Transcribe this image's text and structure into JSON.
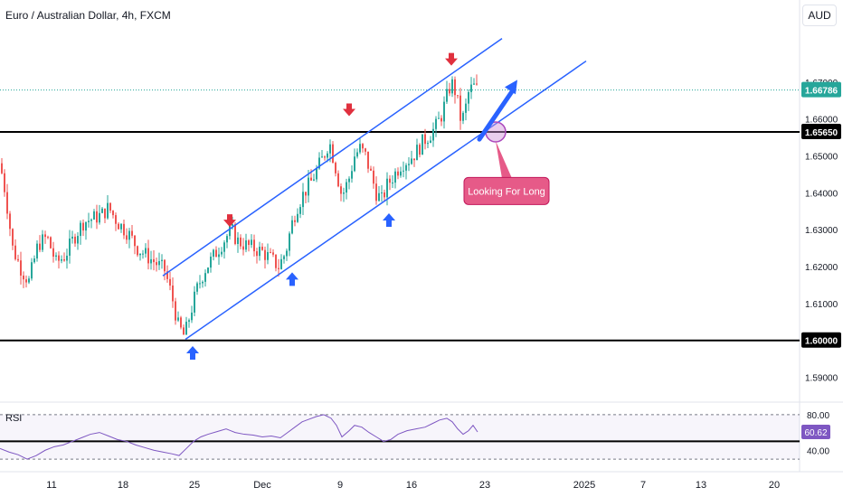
{
  "header": {
    "symbol": "Euro / Australian Dollar, 4h, FXCM",
    "currency": "AUD"
  },
  "colors": {
    "up": "#26a69a",
    "down": "#ef5350",
    "channel": "#2962ff",
    "red_arrow": "#e0303e",
    "blue_arrow": "#2962ff",
    "annotation_bg": "#e65a88",
    "rsi_line": "#7e57c2",
    "price_tag": "#26a69a"
  },
  "chart_data": [
    {
      "type": "candlestick",
      "ylim": [
        1.585,
        1.68
      ],
      "y_ticks": [
        "1.59000",
        "1.60000",
        "1.61000",
        "1.62000",
        "1.63000",
        "1.64000",
        "1.65000",
        "1.66000",
        "1.67000"
      ],
      "x_ticks": [
        "11",
        "18",
        "25",
        "Dec",
        "9",
        "16",
        "23",
        "2025",
        "7",
        "13",
        "20"
      ],
      "last_price": "1.66786",
      "horizontal_levels": [
        {
          "label": "1.65650",
          "value": 1.6565
        },
        {
          "label": "1.60000",
          "value": 1.6
        }
      ],
      "close_path": [
        [
          0,
          1.648
        ],
        [
          6,
          1.64
        ],
        [
          14,
          1.625
        ],
        [
          24,
          1.619
        ],
        [
          32,
          1.616
        ],
        [
          42,
          1.626
        ],
        [
          52,
          1.628
        ],
        [
          62,
          1.621
        ],
        [
          72,
          1.623
        ],
        [
          82,
          1.628
        ],
        [
          92,
          1.632
        ],
        [
          102,
          1.633
        ],
        [
          112,
          1.634
        ],
        [
          120,
          1.636
        ],
        [
          130,
          1.632
        ],
        [
          142,
          1.629
        ],
        [
          152,
          1.625
        ],
        [
          162,
          1.623
        ],
        [
          172,
          1.621
        ],
        [
          182,
          1.619
        ],
        [
          190,
          1.612
        ],
        [
          197,
          1.604
        ],
        [
          204,
          1.601
        ],
        [
          210,
          1.607
        ],
        [
          218,
          1.614
        ],
        [
          226,
          1.619
        ],
        [
          234,
          1.622
        ],
        [
          242,
          1.625
        ],
        [
          250,
          1.628
        ],
        [
          256,
          1.63
        ],
        [
          262,
          1.627
        ],
        [
          270,
          1.626
        ],
        [
          280,
          1.625
        ],
        [
          290,
          1.624
        ],
        [
          300,
          1.622
        ],
        [
          308,
          1.62
        ],
        [
          316,
          1.624
        ],
        [
          322,
          1.631
        ],
        [
          328,
          1.636
        ],
        [
          336,
          1.64
        ],
        [
          344,
          1.643
        ],
        [
          352,
          1.647
        ],
        [
          358,
          1.65
        ],
        [
          364,
          1.654
        ],
        [
          370,
          1.648
        ],
        [
          378,
          1.639
        ],
        [
          386,
          1.644
        ],
        [
          392,
          1.65
        ],
        [
          398,
          1.652
        ],
        [
          404,
          1.65
        ],
        [
          410,
          1.645
        ],
        [
          416,
          1.64
        ],
        [
          422,
          1.638
        ],
        [
          428,
          1.642
        ],
        [
          436,
          1.645
        ],
        [
          444,
          1.648
        ],
        [
          452,
          1.649
        ],
        [
          460,
          1.651
        ],
        [
          468,
          1.654
        ],
        [
          476,
          1.656
        ],
        [
          482,
          1.658
        ],
        [
          488,
          1.661
        ],
        [
          494,
          1.666
        ],
        [
          499,
          1.67
        ],
        [
          504,
          1.667
        ],
        [
          510,
          1.659
        ],
        [
          514,
          1.662
        ],
        [
          518,
          1.667
        ],
        [
          523,
          1.669
        ],
        [
          528,
          1.6678
        ]
      ],
      "trend_channel": {
        "upper": [
          [
            180,
            1.6175
          ],
          [
            555,
            1.6818
          ]
        ],
        "lower": [
          [
            205,
            1.6003
          ],
          [
            648,
            1.6757
          ]
        ]
      },
      "markers": [
        {
          "type": "sell-arrow",
          "x": 254,
          "value": 1.6315
        },
        {
          "type": "sell-arrow",
          "x": 386,
          "value": 1.6615
        },
        {
          "type": "sell-arrow",
          "x": 499,
          "value": 1.6752
        },
        {
          "type": "buy-arrow",
          "x": 213,
          "value": 1.5965
        },
        {
          "type": "buy-arrow",
          "x": 323,
          "value": 1.6165
        },
        {
          "type": "buy-arrow",
          "x": 430,
          "value": 1.6325
        }
      ],
      "annotation": {
        "text": "Looking For Long",
        "x": 560,
        "value": 1.6405
      },
      "target_arrow": {
        "from": [
          530,
          1.6545
        ],
        "to": [
          572,
          1.6706
        ]
      },
      "circle": {
        "x": 548,
        "value": 1.6565
      }
    },
    {
      "type": "line",
      "series": [
        {
          "name": "RSI"
        }
      ],
      "ylim": [
        24,
        85
      ],
      "y_ticks": [
        "80.00",
        "40.00"
      ],
      "current_value": "60.62",
      "levels": [
        {
          "value": 50
        }
      ],
      "band": [
        30,
        80
      ],
      "path": [
        [
          0,
          42
        ],
        [
          10,
          38
        ],
        [
          20,
          35
        ],
        [
          30,
          30
        ],
        [
          40,
          34
        ],
        [
          50,
          40
        ],
        [
          60,
          44
        ],
        [
          70,
          46
        ],
        [
          80,
          50
        ],
        [
          90,
          54
        ],
        [
          100,
          58
        ],
        [
          110,
          60
        ],
        [
          120,
          56
        ],
        [
          130,
          52
        ],
        [
          140,
          50
        ],
        [
          150,
          46
        ],
        [
          160,
          43
        ],
        [
          170,
          40
        ],
        [
          180,
          38
        ],
        [
          190,
          36
        ],
        [
          198,
          34
        ],
        [
          206,
          42
        ],
        [
          214,
          50
        ],
        [
          222,
          55
        ],
        [
          230,
          58
        ],
        [
          240,
          61
        ],
        [
          250,
          64
        ],
        [
          260,
          60
        ],
        [
          270,
          58
        ],
        [
          280,
          57
        ],
        [
          290,
          55
        ],
        [
          300,
          56
        ],
        [
          310,
          54
        ],
        [
          318,
          60
        ],
        [
          326,
          66
        ],
        [
          334,
          72
        ],
        [
          342,
          75
        ],
        [
          350,
          78
        ],
        [
          358,
          80
        ],
        [
          366,
          76
        ],
        [
          372,
          68
        ],
        [
          378,
          55
        ],
        [
          386,
          62
        ],
        [
          392,
          68
        ],
        [
          400,
          66
        ],
        [
          408,
          60
        ],
        [
          416,
          55
        ],
        [
          424,
          50
        ],
        [
          432,
          52
        ],
        [
          440,
          58
        ],
        [
          450,
          62
        ],
        [
          460,
          64
        ],
        [
          470,
          66
        ],
        [
          478,
          70
        ],
        [
          486,
          74
        ],
        [
          494,
          76
        ],
        [
          500,
          72
        ],
        [
          506,
          64
        ],
        [
          512,
          58
        ],
        [
          518,
          62
        ],
        [
          523,
          68
        ],
        [
          528,
          60.6
        ]
      ]
    }
  ]
}
